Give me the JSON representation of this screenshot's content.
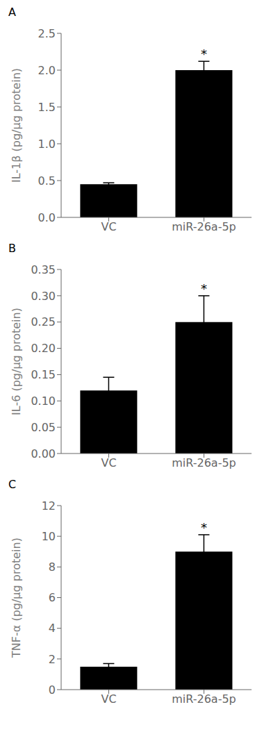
{
  "chart_data": [
    {
      "type": "bar",
      "title": "A",
      "categories": [
        "VC",
        "miR-26a-5p"
      ],
      "values": [
        0.45,
        2.0
      ],
      "errors": [
        0.02,
        0.12
      ],
      "color": "#000000",
      "ylabel": "IL-1β (pg/µg protein)",
      "ylim": [
        0,
        2.5
      ],
      "yticks": [
        {
          "value": 0,
          "label": "0.0"
        },
        0.5,
        {
          "value": 1.0,
          "label": "1.0"
        },
        1.5,
        {
          "value": 2.0,
          "label": "2.0"
        },
        2.5
      ],
      "annotations": [
        {
          "text": "*",
          "x": "miR-26a-5p"
        }
      ]
    },
    {
      "type": "bar",
      "title": "B",
      "categories": [
        "VC",
        "miR-26a-5p"
      ],
      "values": [
        0.12,
        0.25
      ],
      "errors": [
        0.025,
        0.05
      ],
      "color": "#000000",
      "ylabel": "IL-6 (pg/µg protein)",
      "ylim": [
        0,
        0.35
      ],
      "yticks": [
        {
          "value": 0,
          "label": "0.00"
        },
        0.05,
        {
          "value": 0.1,
          "label": "0.10"
        },
        0.15,
        {
          "value": 0.2,
          "label": "0.20"
        },
        0.25,
        {
          "value": 0.3,
          "label": "0.30"
        },
        0.35
      ],
      "annotations": [
        {
          "text": "*",
          "x": "miR-26a-5p"
        }
      ]
    },
    {
      "type": "bar",
      "title": "C",
      "categories": [
        "VC",
        "miR-26a-5p"
      ],
      "values": [
        1.5,
        9.0
      ],
      "errors": [
        0.2,
        1.1
      ],
      "color": "#000000",
      "ylabel": "TNF-α (pg/µg protein)",
      "ylim": [
        0,
        12
      ],
      "yticks": [
        0,
        2,
        4,
        6,
        8,
        10,
        12
      ],
      "annotations": [
        {
          "text": "*",
          "x": "miR-26a-5p"
        }
      ]
    }
  ]
}
